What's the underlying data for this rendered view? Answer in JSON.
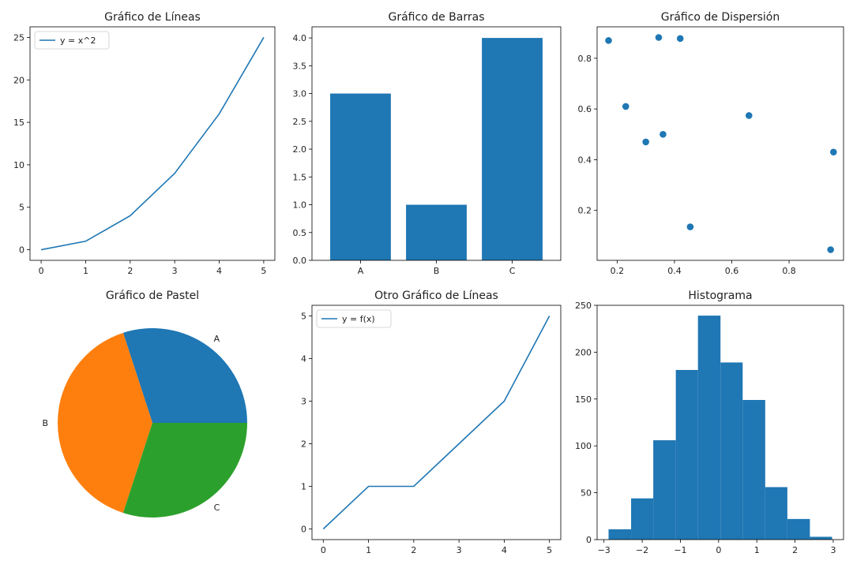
{
  "chart_data": [
    {
      "type": "line",
      "title": "Gráfico de Líneas",
      "x": [
        0,
        1,
        2,
        3,
        4,
        5
      ],
      "series": [
        {
          "name": "y = x^2",
          "values": [
            0,
            1,
            4,
            9,
            16,
            25
          ]
        }
      ],
      "xlim": [
        -0.25,
        5.25
      ],
      "ylim": [
        -1.25,
        26.25
      ],
      "xticks": [
        0,
        1,
        2,
        3,
        4,
        5
      ],
      "yticks": [
        0,
        5,
        10,
        15,
        20,
        25
      ],
      "legend": "upper-left",
      "color": "#1f77b4"
    },
    {
      "type": "bar",
      "title": "Gráfico de Barras",
      "categories": [
        "A",
        "B",
        "C"
      ],
      "values": [
        3,
        1,
        4
      ],
      "ylim": [
        0,
        4.2
      ],
      "yticks": [
        0.0,
        0.5,
        1.0,
        1.5,
        2.0,
        2.5,
        3.0,
        3.5,
        4.0
      ],
      "ytick_labels": [
        "0.0",
        "0.5",
        "1.0",
        "1.5",
        "2.0",
        "2.5",
        "3.0",
        "3.5",
        "4.0"
      ],
      "color": "#1f77b4"
    },
    {
      "type": "scatter",
      "title": "Gráfico de Dispersión",
      "points": [
        {
          "x": 0.17,
          "y": 0.87
        },
        {
          "x": 0.345,
          "y": 0.882
        },
        {
          "x": 0.42,
          "y": 0.878
        },
        {
          "x": 0.23,
          "y": 0.61
        },
        {
          "x": 0.3,
          "y": 0.47
        },
        {
          "x": 0.36,
          "y": 0.5
        },
        {
          "x": 0.66,
          "y": 0.574
        },
        {
          "x": 0.955,
          "y": 0.43
        },
        {
          "x": 0.455,
          "y": 0.135
        },
        {
          "x": 0.945,
          "y": 0.045
        }
      ],
      "xlim": [
        0.13,
        0.99
      ],
      "ylim": [
        0.003,
        0.924
      ],
      "xticks": [
        0.2,
        0.4,
        0.6,
        0.8
      ],
      "xtick_labels": [
        "0.2",
        "0.4",
        "0.6",
        "0.8"
      ],
      "yticks": [
        0.2,
        0.4,
        0.6,
        0.8
      ],
      "ytick_labels": [
        "0.2",
        "0.4",
        "0.6",
        "0.8"
      ],
      "color": "#1f77b4"
    },
    {
      "type": "pie",
      "title": "Gráfico de Pastel",
      "labels": [
        "A",
        "B",
        "C"
      ],
      "values": [
        30,
        40,
        30
      ],
      "colors": [
        "#1f77b4",
        "#ff7f0e",
        "#2ca02c"
      ]
    },
    {
      "type": "line",
      "title": "Otro Gráfico de Líneas",
      "x": [
        0,
        1,
        2,
        3,
        4,
        5
      ],
      "series": [
        {
          "name": "y = f(x)",
          "values": [
            0,
            1,
            1,
            2,
            3,
            5
          ]
        }
      ],
      "xlim": [
        -0.25,
        5.25
      ],
      "ylim": [
        -0.25,
        5.25
      ],
      "xticks": [
        0,
        1,
        2,
        3,
        4,
        5
      ],
      "yticks": [
        0,
        1,
        2,
        3,
        4,
        5
      ],
      "legend": "upper-left",
      "color": "#1f77b4"
    },
    {
      "type": "histogram",
      "title": "Histograma",
      "bin_edges": [
        -2.88,
        -2.29,
        -1.71,
        -1.12,
        -0.54,
        0.05,
        0.63,
        1.22,
        1.8,
        2.39,
        2.97
      ],
      "counts": [
        11,
        44,
        106,
        181,
        239,
        189,
        149,
        56,
        22,
        3
      ],
      "xlim": [
        -3.18,
        3.27
      ],
      "ylim": [
        0,
        250
      ],
      "xticks": [
        -3,
        -2,
        -1,
        0,
        1,
        2,
        3
      ],
      "yticks": [
        0,
        50,
        100,
        150,
        200,
        250
      ],
      "color": "#1f77b4"
    }
  ]
}
